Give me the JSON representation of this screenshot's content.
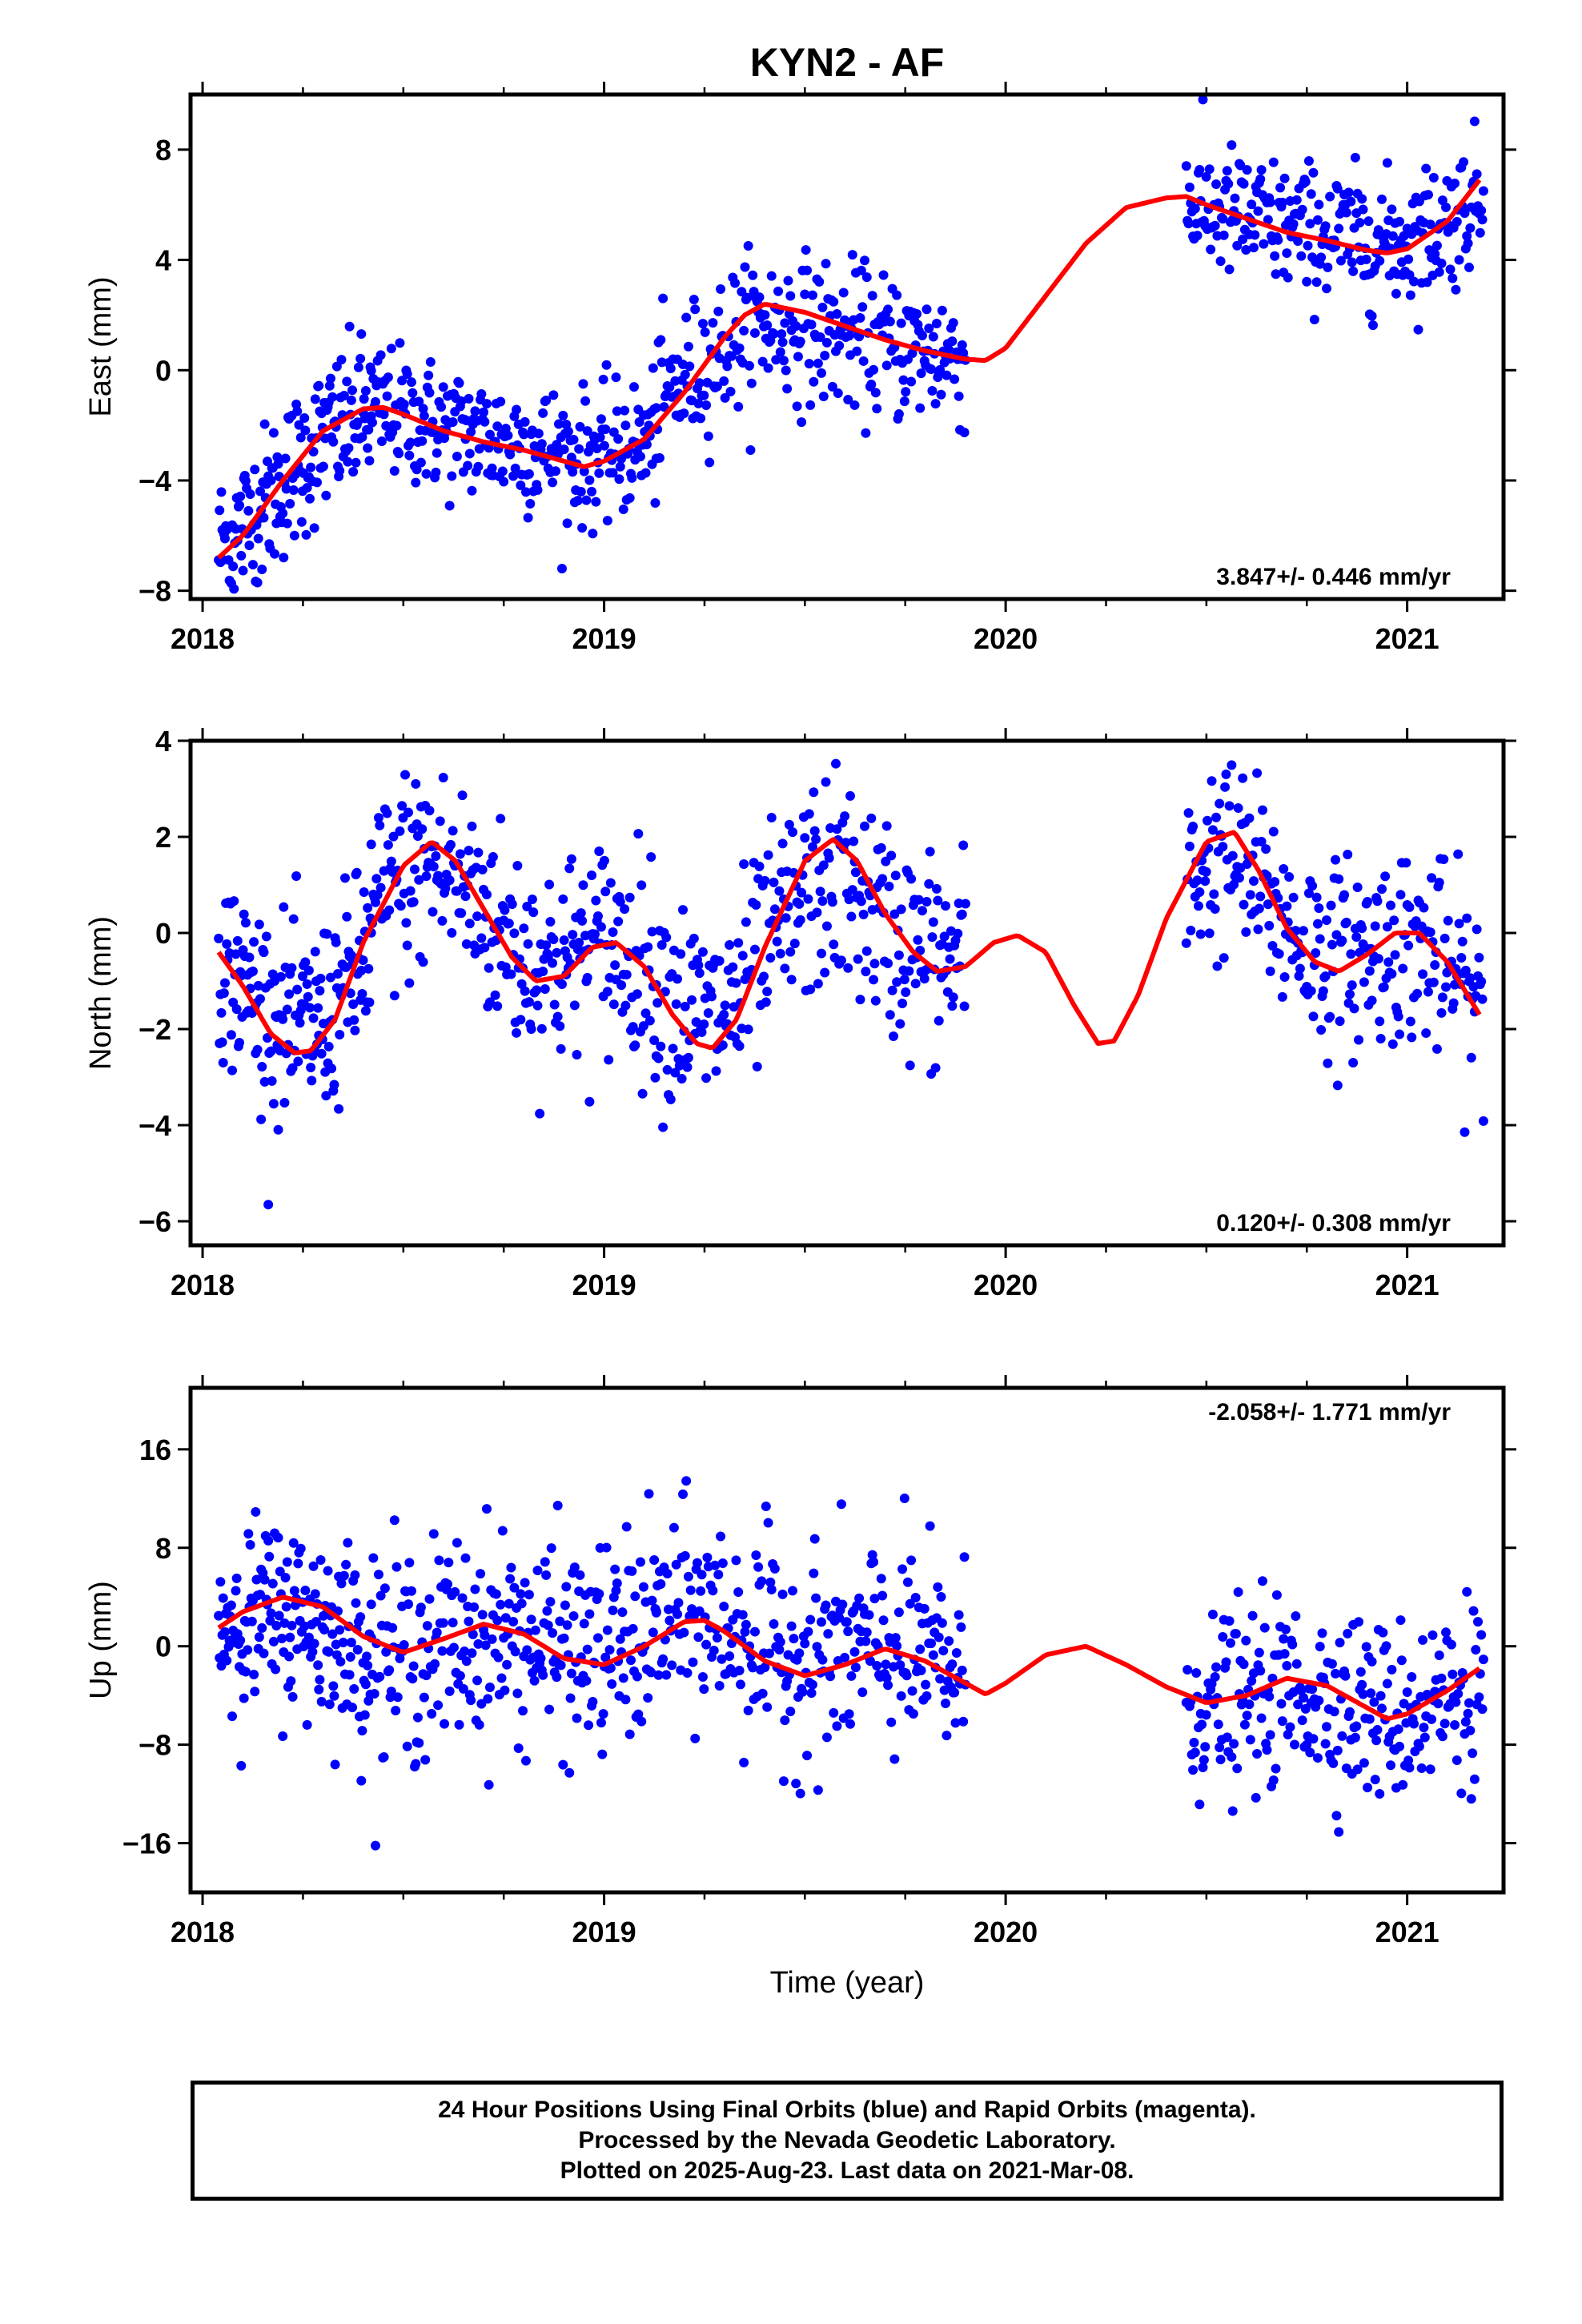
{
  "title": "KYN2 - AF",
  "footer": {
    "line1": "24 Hour Positions Using Final Orbits (blue) and Rapid Orbits (magenta).",
    "line2": "Processed by the Nevada Geodetic Laboratory.",
    "line3": "Plotted on 2025-Aug-23. Last data on 2021-Mar-08."
  },
  "colors": {
    "points": "#0000ff",
    "model": "#ff0000",
    "frame": "#000000"
  },
  "chart_data": [
    {
      "type": "scatter",
      "component": "east",
      "ylabel": "East (mm)",
      "xlabel": "",
      "xlim": [
        2017.97,
        2021.24
      ],
      "ylim": [
        -8.3,
        10
      ],
      "xticks": [
        2018,
        2019,
        2020,
        2021
      ],
      "yticks": [
        -8,
        -4,
        0,
        4,
        8
      ],
      "rate_label": "3.847+/- 0.446 mm/yr",
      "rate_position": "bottom-right",
      "model_curve": {
        "x": [
          2018.04,
          2018.1,
          2018.2,
          2018.3,
          2018.4,
          2018.45,
          2018.5,
          2018.6,
          2018.7,
          2018.8,
          2018.9,
          2018.95,
          2019.0,
          2019.1,
          2019.2,
          2019.3,
          2019.35,
          2019.4,
          2019.5,
          2019.6,
          2019.7,
          2019.8,
          2019.9,
          2019.95,
          2020.0,
          2020.1,
          2020.2,
          2020.3,
          2020.4,
          2020.45,
          2020.5,
          2020.6,
          2020.7,
          2020.8,
          2020.9,
          2020.95,
          2021.0,
          2021.1,
          2021.18
        ],
        "y": [
          -6.8,
          -6.0,
          -4.0,
          -2.2,
          -1.4,
          -1.35,
          -1.6,
          -2.2,
          -2.6,
          -2.9,
          -3.3,
          -3.5,
          -3.3,
          -2.5,
          -0.8,
          1.2,
          2.0,
          2.4,
          2.1,
          1.6,
          1.1,
          0.7,
          0.4,
          0.35,
          0.8,
          2.7,
          4.6,
          5.9,
          6.25,
          6.3,
          6.0,
          5.5,
          5.0,
          4.7,
          4.35,
          4.25,
          4.4,
          5.4,
          6.9
        ]
      },
      "segments": [
        {
          "x0": 2018.04,
          "x1": 2018.42,
          "y0": -5.8,
          "y1": -1.8,
          "n": 170,
          "noise": 1.4
        },
        {
          "x0": 2018.42,
          "x1": 2019.13,
          "y0": -1.6,
          "y1": -3.0,
          "n": 270,
          "noise": 1.2
        },
        {
          "x0": 2019.13,
          "x1": 2019.9,
          "y0": 0.3,
          "y1": 0.6,
          "n": 280,
          "noise": 1.3
        },
        {
          "x0": 2020.45,
          "x1": 2021.19,
          "y0": 5.6,
          "y1": 5.2,
          "n": 270,
          "noise": 1.2
        }
      ]
    },
    {
      "type": "scatter",
      "component": "north",
      "ylabel": "North (mm)",
      "xlabel": "",
      "xlim": [
        2017.97,
        2021.24
      ],
      "ylim": [
        -6.5,
        4
      ],
      "xticks": [
        2018,
        2019,
        2020,
        2021
      ],
      "yticks": [
        -6,
        -4,
        -2,
        0,
        2,
        4
      ],
      "rate_label": "0.120+/- 0.308 mm/yr",
      "rate_position": "bottom-right",
      "model_curve": {
        "x": [
          2018.04,
          2018.1,
          2018.17,
          2018.23,
          2018.27,
          2018.33,
          2018.4,
          2018.5,
          2018.57,
          2018.63,
          2018.7,
          2018.77,
          2018.83,
          2018.9,
          2018.97,
          2019.03,
          2019.1,
          2019.17,
          2019.23,
          2019.27,
          2019.33,
          2019.4,
          2019.5,
          2019.57,
          2019.63,
          2019.7,
          2019.77,
          2019.83,
          2019.9,
          2019.97,
          2020.03,
          2020.1,
          2020.17,
          2020.23,
          2020.27,
          2020.33,
          2020.4,
          2020.5,
          2020.57,
          2020.63,
          2020.7,
          2020.77,
          2020.83,
          2020.9,
          2020.97,
          2021.03,
          2021.1,
          2021.18
        ],
        "y": [
          -0.4,
          -1.1,
          -2.1,
          -2.5,
          -2.45,
          -1.8,
          -0.2,
          1.4,
          1.9,
          1.5,
          0.5,
          -0.5,
          -1.0,
          -0.9,
          -0.3,
          -0.2,
          -0.7,
          -1.7,
          -2.3,
          -2.4,
          -1.8,
          -0.3,
          1.5,
          1.95,
          1.5,
          0.4,
          -0.4,
          -0.8,
          -0.7,
          -0.2,
          -0.05,
          -0.4,
          -1.5,
          -2.3,
          -2.25,
          -1.3,
          0.3,
          1.9,
          2.1,
          1.3,
          0.1,
          -0.6,
          -0.8,
          -0.45,
          0.0,
          0.0,
          -0.6,
          -1.7
        ]
      },
      "segments": [
        {
          "x0": 2018.04,
          "x1": 2018.42,
          "y0": -0.8,
          "y1": -1.2,
          "n": 170,
          "noise": 1.0
        },
        {
          "x0": 2018.42,
          "x1": 2019.13,
          "y0": 1.0,
          "y1": -0.6,
          "n": 270,
          "noise": 1.1
        },
        {
          "x0": 2019.13,
          "x1": 2019.9,
          "y0": -0.8,
          "y1": -0.2,
          "n": 280,
          "noise": 1.1
        },
        {
          "x0": 2020.45,
          "x1": 2021.19,
          "y0": 1.0,
          "y1": -1.2,
          "n": 270,
          "noise": 1.0
        }
      ]
    },
    {
      "type": "scatter",
      "component": "up",
      "ylabel": "Up (mm)",
      "xlabel": "Time (year)",
      "xlim": [
        2017.97,
        2021.24
      ],
      "ylim": [
        -20,
        21
      ],
      "xticks": [
        2018,
        2019,
        2020,
        2021
      ],
      "yticks": [
        -16,
        -8,
        0,
        8,
        16
      ],
      "rate_label": "-2.058+/- 1.771 mm/yr",
      "rate_position": "top-right",
      "model_curve": {
        "x": [
          2018.04,
          2018.1,
          2018.2,
          2018.3,
          2018.4,
          2018.5,
          2018.6,
          2018.7,
          2018.8,
          2018.9,
          2019.0,
          2019.1,
          2019.2,
          2019.25,
          2019.3,
          2019.4,
          2019.5,
          2019.6,
          2019.7,
          2019.8,
          2019.9,
          2019.95,
          2020.0,
          2020.1,
          2020.2,
          2020.3,
          2020.4,
          2020.5,
          2020.6,
          2020.7,
          2020.8,
          2020.9,
          2020.95,
          2021.0,
          2021.1,
          2021.18
        ],
        "y": [
          1.5,
          2.8,
          4.0,
          3.2,
          0.8,
          -0.5,
          0.6,
          1.8,
          1.0,
          -1.0,
          -1.5,
          0.0,
          2.0,
          2.1,
          1.2,
          -1.2,
          -2.4,
          -1.5,
          -0.2,
          -1.2,
          -3.0,
          -3.9,
          -3.0,
          -0.7,
          0.0,
          -1.5,
          -3.3,
          -4.6,
          -4.0,
          -2.6,
          -3.2,
          -5.0,
          -5.9,
          -5.5,
          -3.6,
          -1.8
        ]
      },
      "segments": [
        {
          "x0": 2018.04,
          "x1": 2018.42,
          "y0": 2.0,
          "y1": -2.5,
          "n": 170,
          "noise": 3.8
        },
        {
          "x0": 2018.42,
          "x1": 2019.13,
          "y0": -2.0,
          "y1": 2.5,
          "n": 270,
          "noise": 4.2
        },
        {
          "x0": 2019.13,
          "x1": 2019.9,
          "y0": 4.0,
          "y1": -1.0,
          "n": 280,
          "noise": 4.2
        },
        {
          "x0": 2020.45,
          "x1": 2021.19,
          "y0": -5.5,
          "y1": -5.0,
          "n": 270,
          "noise": 3.6
        }
      ]
    }
  ]
}
